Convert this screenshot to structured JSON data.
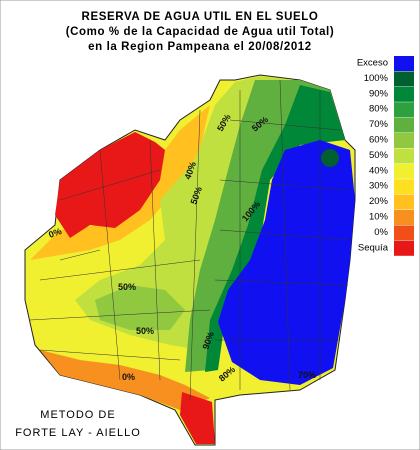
{
  "header": {
    "title": [
      "RESERVA DE AGUA UTIL EN EL SUELO",
      "(Como % de la Capacidad de Agua util Total)",
      "en la Region Pampeana el 20/08/2012"
    ]
  },
  "legend": [
    {
      "label": "Exceso",
      "color": "#1010f0"
    },
    {
      "label": "100%",
      "color": "#006030"
    },
    {
      "label": "90%",
      "color": "#008838"
    },
    {
      "label": "80%",
      "color": "#2ea040"
    },
    {
      "label": "70%",
      "color": "#60b040"
    },
    {
      "label": "60%",
      "color": "#90c840"
    },
    {
      "label": "50%",
      "color": "#c0e040"
    },
    {
      "label": "40%",
      "color": "#f0f030"
    },
    {
      "label": "30%",
      "color": "#ffe020"
    },
    {
      "label": "20%",
      "color": "#ffc020"
    },
    {
      "label": "10%",
      "color": "#f89020"
    },
    {
      "label": "0%",
      "color": "#f05018"
    },
    {
      "label": "Sequía",
      "color": "#e81818"
    }
  ],
  "contour_labels": [
    "50%",
    "40%",
    "50%",
    "0%",
    "50%",
    "50%",
    "100%",
    "90%",
    "80%",
    "0%",
    "70%",
    "50%"
  ],
  "footer": [
    "METODO DE",
    "FORTE LAY - AIELLO"
  ]
}
